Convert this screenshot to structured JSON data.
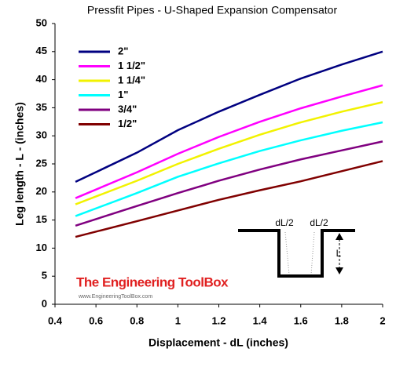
{
  "chart_data": {
    "type": "line",
    "title": "Pressfit Pipes - U-Shaped Expansion Compensator",
    "x_label": "Displacement - dL (inches)",
    "y_label": "Leg length - L - (inches)",
    "x": [
      0.5,
      0.8,
      1.0,
      1.2,
      1.4,
      1.6,
      1.8,
      2.0
    ],
    "series": [
      {
        "name": "2\"",
        "color": "#000080",
        "values": [
          21.8,
          27,
          31,
          34.3,
          37.3,
          40.2,
          42.7,
          45
        ]
      },
      {
        "name": "1 1/2\"",
        "color": "#ff00ff",
        "values": [
          18.9,
          23.5,
          26.8,
          29.8,
          32.5,
          34.9,
          37,
          39
        ]
      },
      {
        "name": "1 1/4\"",
        "color": "#f2f200",
        "values": [
          17.8,
          22,
          25,
          27.7,
          30.2,
          32.4,
          34.3,
          36
        ]
      },
      {
        "name": "1\"",
        "color": "#00ffff",
        "values": [
          15.7,
          19.8,
          22.7,
          25.1,
          27.3,
          29.2,
          30.9,
          32.4
        ]
      },
      {
        "name": "3/4\"",
        "color": "#800080",
        "values": [
          14,
          17.5,
          19.8,
          22,
          24,
          25.8,
          27.4,
          29
        ]
      },
      {
        "name": "1/2\"",
        "color": "#800000",
        "values": [
          12,
          14.8,
          16.7,
          18.6,
          20.3,
          21.9,
          23.7,
          25.5
        ]
      }
    ],
    "xlim": [
      0.4,
      2
    ],
    "xticks": [
      0.4,
      0.6,
      0.8,
      1,
      1.2,
      1.4,
      1.6,
      1.8,
      2
    ],
    "ylim": [
      0,
      50
    ],
    "yticks": [
      0,
      5,
      10,
      15,
      20,
      25,
      30,
      35,
      40,
      45,
      50
    ],
    "grid": false,
    "legend": "upper-left",
    "annotations": [
      "dL/2",
      "dL/2",
      "L"
    ],
    "watermark": "The Engineering ToolBox",
    "watermark_url": "www.EngineeringToolBox.com"
  }
}
